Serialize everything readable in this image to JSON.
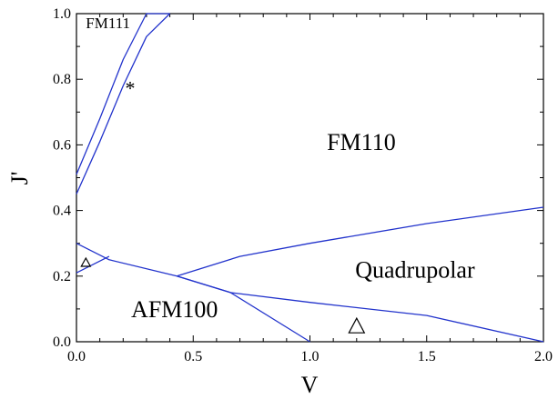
{
  "chart_data": {
    "type": "line",
    "title": "",
    "xlabel": "V",
    "ylabel": "J'",
    "xlim": [
      0,
      2.0
    ],
    "ylim": [
      0,
      1.0
    ],
    "xticks": [
      "0.0",
      "0.5",
      "1.0",
      "1.5",
      "2.0"
    ],
    "yticks": [
      "0.0",
      "0.2",
      "0.4",
      "0.6",
      "0.8",
      "1.0"
    ],
    "grid": false,
    "line_color": "#2233cc",
    "series": [
      {
        "x": [
          0.0,
          0.1,
          0.2,
          0.3,
          0.4
        ],
        "y": [
          0.45,
          0.61,
          0.78,
          0.93,
          1.0
        ]
      },
      {
        "x": [
          0.0,
          0.1,
          0.2,
          0.3,
          0.4
        ],
        "y": [
          0.51,
          0.68,
          0.86,
          1.0,
          1.0
        ]
      },
      {
        "x": [
          0.0,
          0.14,
          0.43
        ],
        "y": [
          0.3,
          0.25,
          0.2
        ]
      },
      {
        "x": [
          0.0,
          0.14
        ],
        "y": [
          0.21,
          0.26
        ]
      },
      {
        "x": [
          0.43,
          0.7,
          1.0,
          1.5,
          2.0
        ],
        "y": [
          0.2,
          0.26,
          0.3,
          0.36,
          0.41
        ]
      },
      {
        "x": [
          0.43,
          0.66,
          1.0,
          1.5,
          2.0
        ],
        "y": [
          0.2,
          0.15,
          0.12,
          0.08,
          0.0
        ]
      },
      {
        "x": [
          0.43,
          0.66,
          1.0
        ],
        "y": [
          0.2,
          0.15,
          0.0
        ]
      }
    ],
    "region_labels": [
      {
        "text": "FM111",
        "x": 0.04,
        "y": 0.955,
        "size": "small"
      },
      {
        "text": "FM110",
        "x": 1.22,
        "y": 0.585,
        "size": "large"
      },
      {
        "text": "Quadrupolar",
        "x": 1.45,
        "y": 0.195,
        "size": "large"
      },
      {
        "text": "AFM100",
        "x": 0.42,
        "y": 0.075,
        "size": "large"
      }
    ],
    "markers": [
      {
        "symbol": "*",
        "x": 0.23,
        "y": 0.78,
        "kind": "text"
      },
      {
        "symbol": "△",
        "x": 0.04,
        "y": 0.24,
        "kind": "small-triangle"
      },
      {
        "symbol": "△",
        "x": 1.2,
        "y": 0.045,
        "kind": "triangle"
      }
    ]
  }
}
